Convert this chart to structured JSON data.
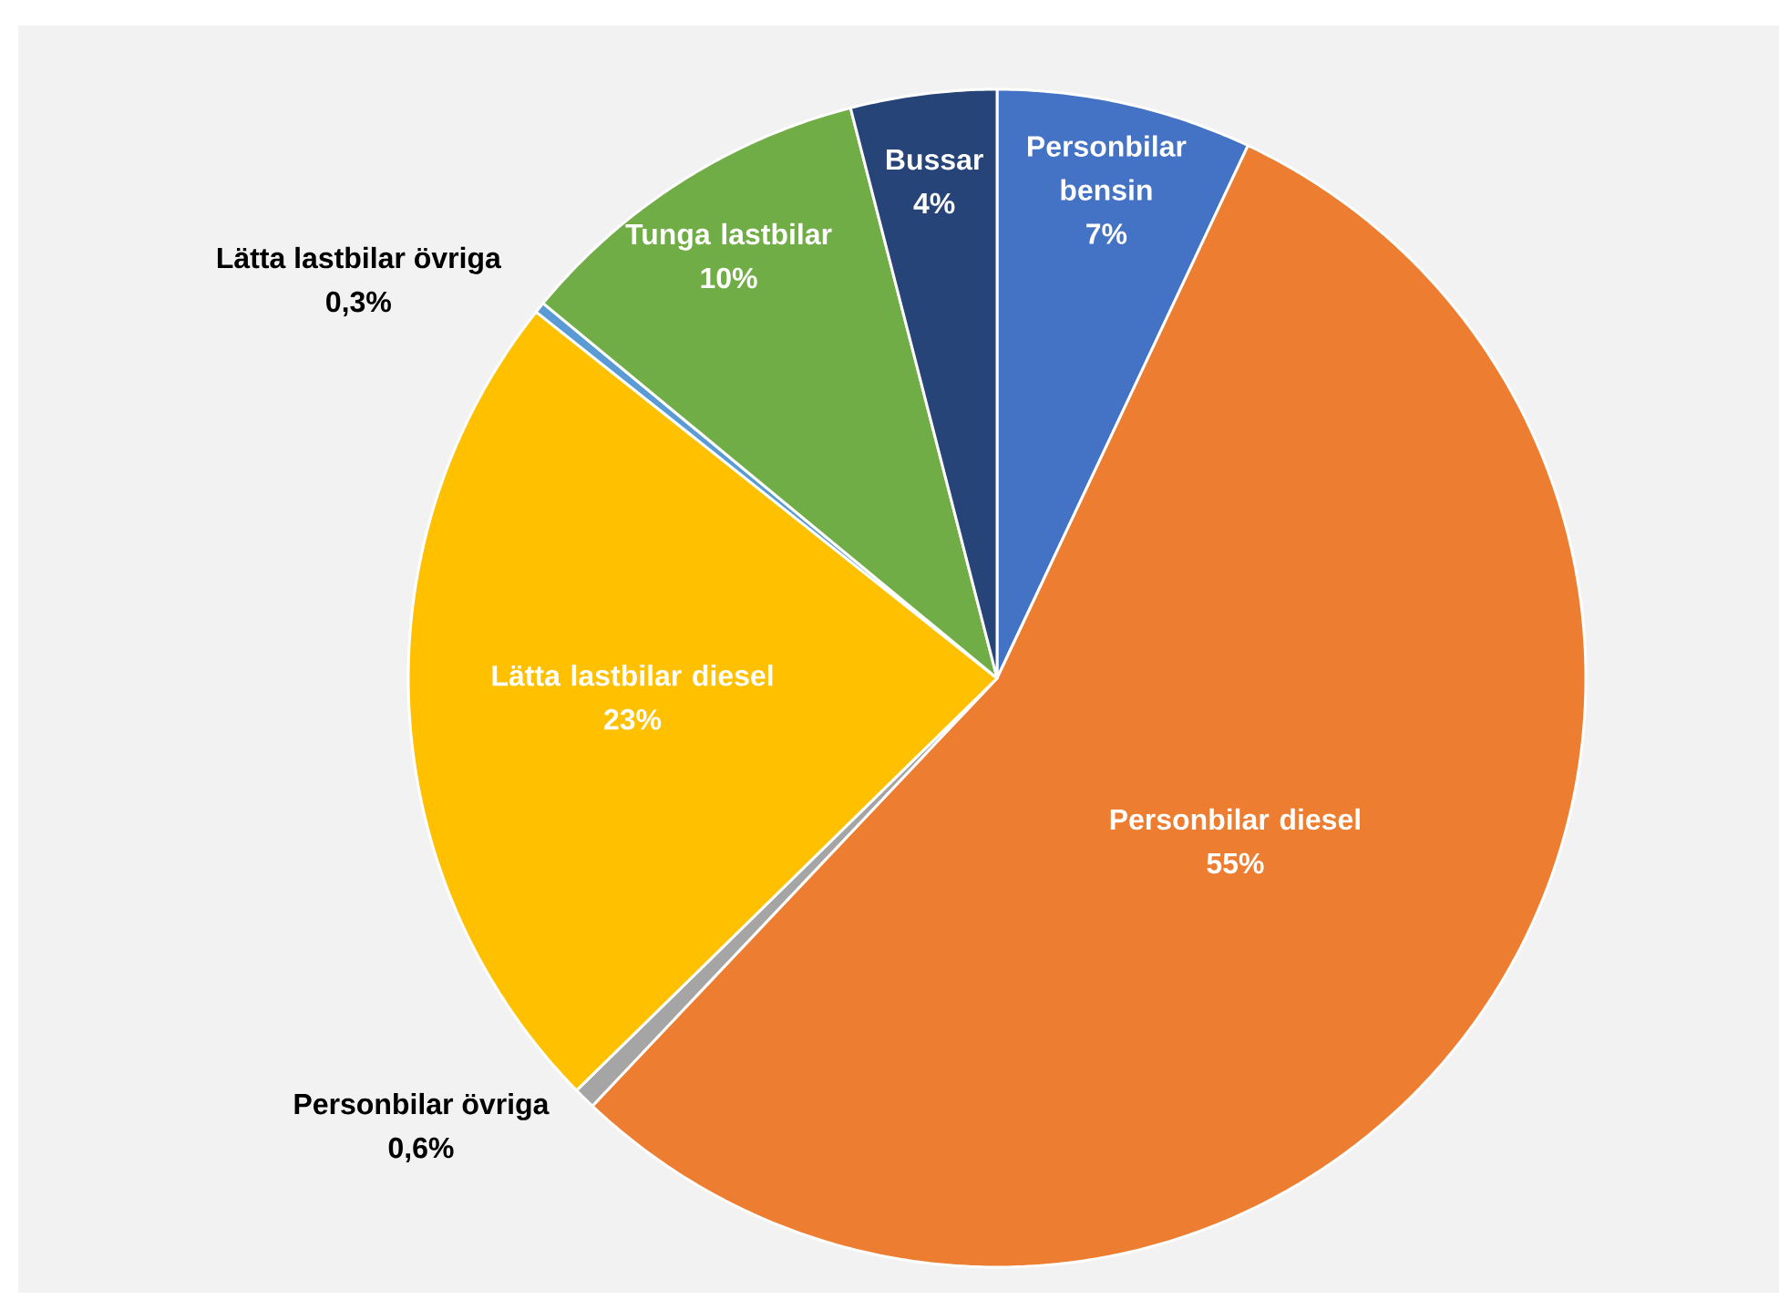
{
  "chart_data": {
    "type": "pie",
    "categories": [
      "Personbilar bensin",
      "Personbilar diesel",
      "Personbilar övriga",
      "Lätta lastbilar diesel",
      "Lätta lastbilar övriga",
      "Tunga lastbilar",
      "Bussar"
    ],
    "values": [
      7,
      55,
      0.6,
      23,
      0.3,
      10,
      4
    ],
    "colors": [
      "#4472c4",
      "#ed7d31",
      "#a5a5a5",
      "#ffc000",
      "#5b9bd5",
      "#70ad47",
      "#264478"
    ],
    "value_labels": [
      "7%",
      "55%",
      "0,6%",
      "23%",
      "0,3%",
      "10%",
      "4%"
    ]
  }
}
